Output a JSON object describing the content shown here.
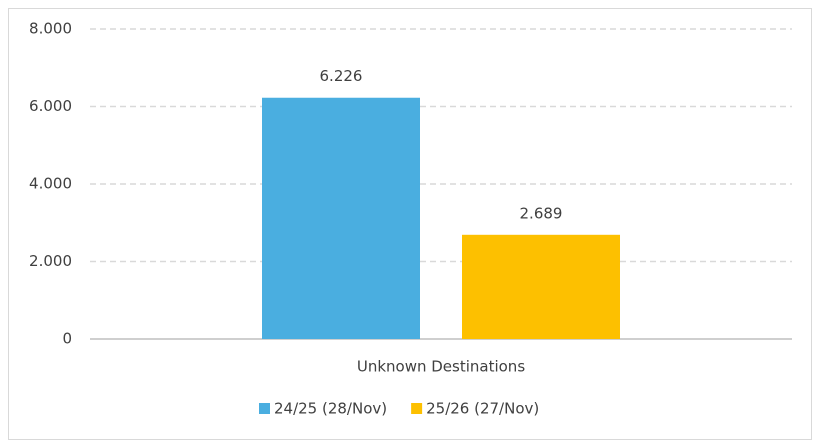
{
  "chart_data": {
    "type": "bar",
    "categories": [
      "Unknown Destinations"
    ],
    "series": [
      {
        "name": "24/25 (28/Nov)",
        "color": "#4aaee0",
        "values": [
          6226
        ],
        "value_labels": [
          "6.226"
        ]
      },
      {
        "name": "25/26 (27/Nov)",
        "color": "#fdc000",
        "values": [
          2689
        ],
        "value_labels": [
          "2.689"
        ]
      }
    ],
    "ylim": [
      0,
      8000
    ],
    "yticks": [
      0,
      {
        "value": 2000,
        "label": "2.000"
      },
      {
        "value": 4000,
        "label": "4.000"
      },
      {
        "value": 6000,
        "label": "6.000"
      },
      {
        "value": 8000,
        "label": "8.000"
      }
    ],
    "grid": true,
    "legend": "bottom"
  }
}
